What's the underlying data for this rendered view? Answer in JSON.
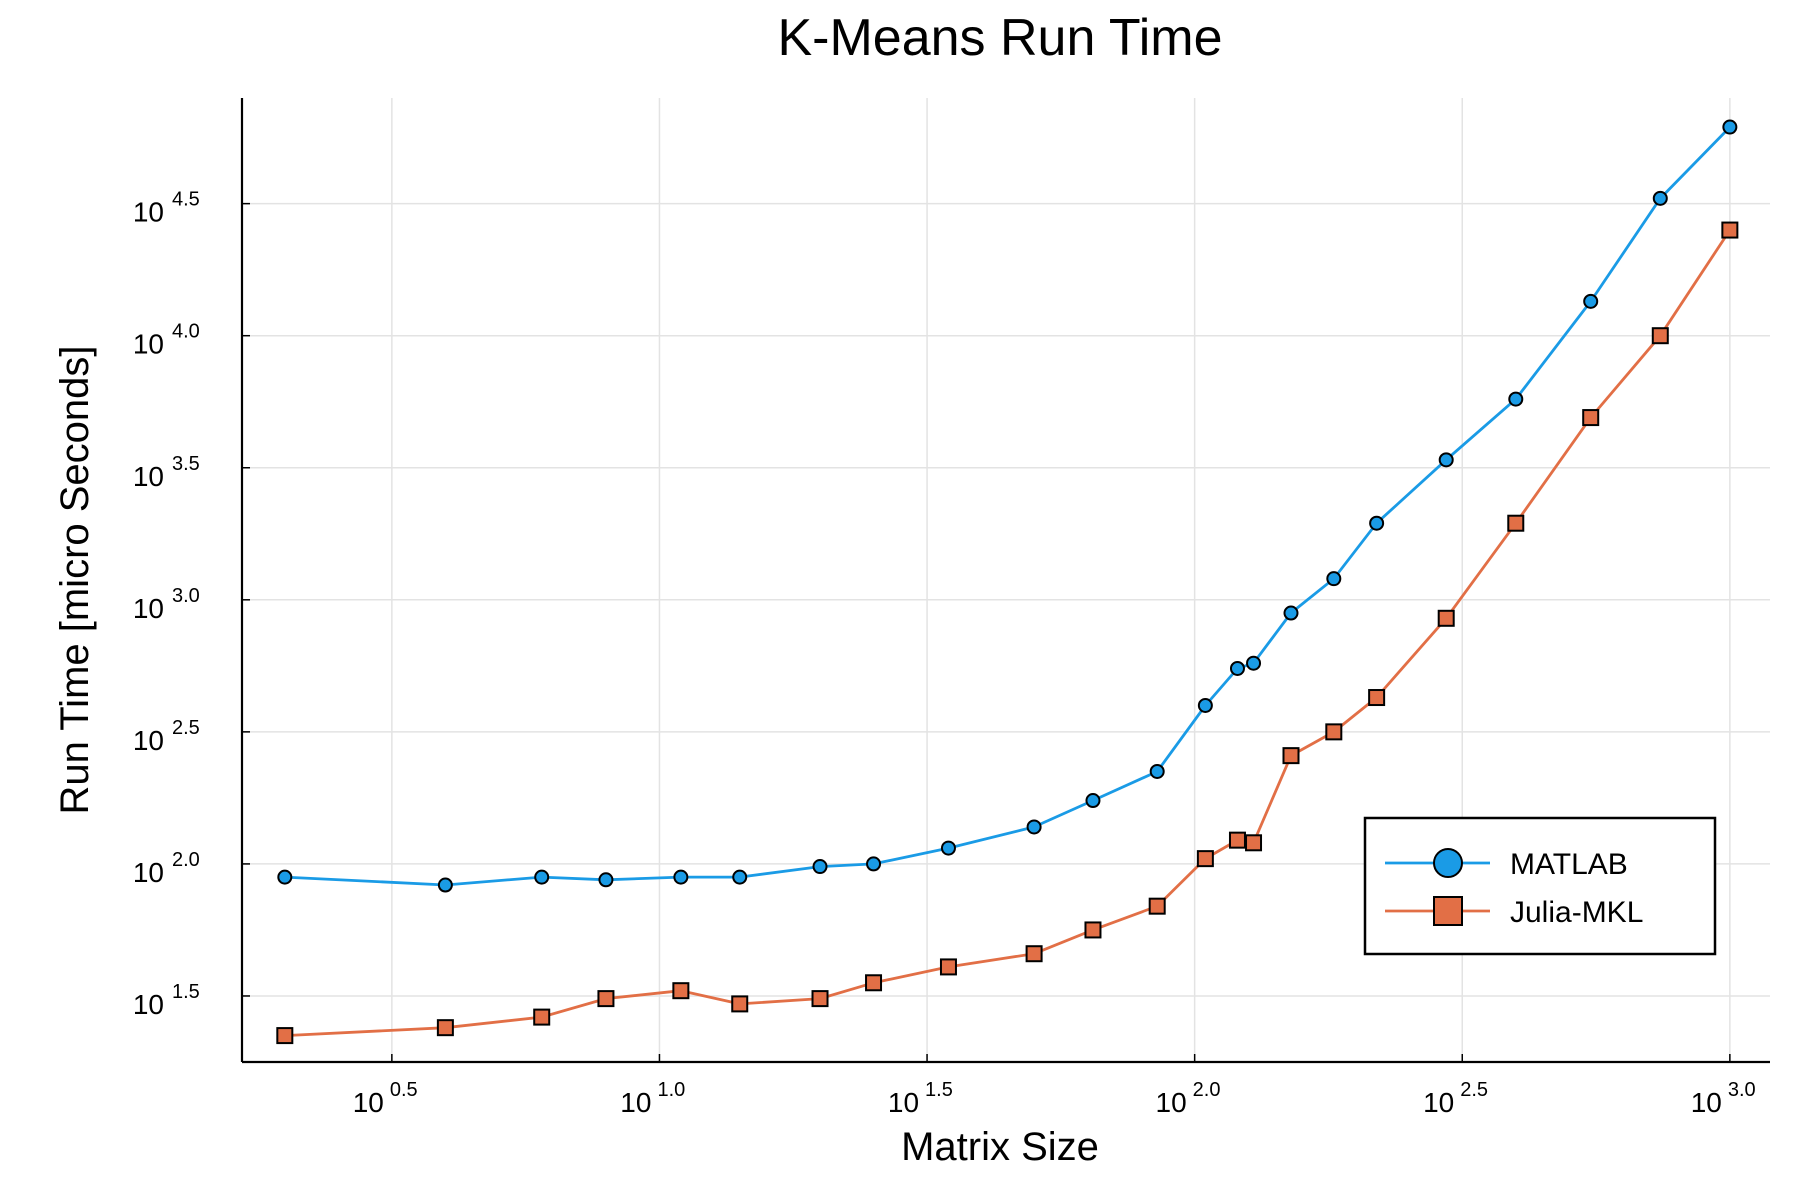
{
  "chart_data": {
    "type": "line",
    "title": "K-Means Run Time",
    "xlabel": "Matrix Size",
    "ylabel": "Run Time  [micro Seconds]",
    "x_scale": "log10",
    "y_scale": "log10",
    "xlim_exp": [
      0.22,
      3.075
    ],
    "ylim_exp": [
      1.25,
      4.9
    ],
    "x_ticks": [
      {
        "base": "10",
        "exp": "0.5",
        "value": 0.5
      },
      {
        "base": "10",
        "exp": "1.0",
        "value": 1.0
      },
      {
        "base": "10",
        "exp": "1.5",
        "value": 1.5
      },
      {
        "base": "10",
        "exp": "2.0",
        "value": 2.0
      },
      {
        "base": "10",
        "exp": "2.5",
        "value": 2.5
      },
      {
        "base": "10",
        "exp": "3.0",
        "value": 3.0
      }
    ],
    "y_ticks": [
      {
        "base": "10",
        "exp": "1.5",
        "value": 1.5
      },
      {
        "base": "10",
        "exp": "2.0",
        "value": 2.0
      },
      {
        "base": "10",
        "exp": "2.5",
        "value": 2.5
      },
      {
        "base": "10",
        "exp": "3.0",
        "value": 3.0
      },
      {
        "base": "10",
        "exp": "3.5",
        "value": 3.5
      },
      {
        "base": "10",
        "exp": "4.0",
        "value": 4.0
      },
      {
        "base": "10",
        "exp": "4.5",
        "value": 4.5
      }
    ],
    "grid": true,
    "legend_position": "bottom-right",
    "x_exp": [
      0.3,
      0.6,
      0.78,
      0.9,
      1.04,
      1.15,
      1.3,
      1.4,
      1.54,
      1.7,
      1.81,
      1.93,
      2.02,
      2.08,
      2.11,
      2.18,
      2.26,
      2.34,
      2.47,
      2.6,
      2.74,
      2.87,
      3.0
    ],
    "series": [
      {
        "name": "MATLAB",
        "color": "#1a9be6",
        "marker": "circle",
        "y_exp": [
          1.95,
          1.92,
          1.95,
          1.94,
          1.95,
          1.95,
          1.99,
          2.0,
          2.06,
          2.14,
          2.24,
          2.35,
          2.6,
          2.74,
          2.76,
          2.95,
          3.08,
          3.29,
          3.53,
          3.76,
          4.13,
          4.52,
          4.79
        ]
      },
      {
        "name": "Julia-MKL",
        "color": "#e26f46",
        "marker": "square",
        "y_exp": [
          1.35,
          1.38,
          1.42,
          1.49,
          1.52,
          1.47,
          1.49,
          1.55,
          1.61,
          1.66,
          1.75,
          1.84,
          2.02,
          2.09,
          2.08,
          2.41,
          2.5,
          2.63,
          2.93,
          3.29,
          3.69,
          4.0,
          4.4
        ]
      }
    ]
  }
}
